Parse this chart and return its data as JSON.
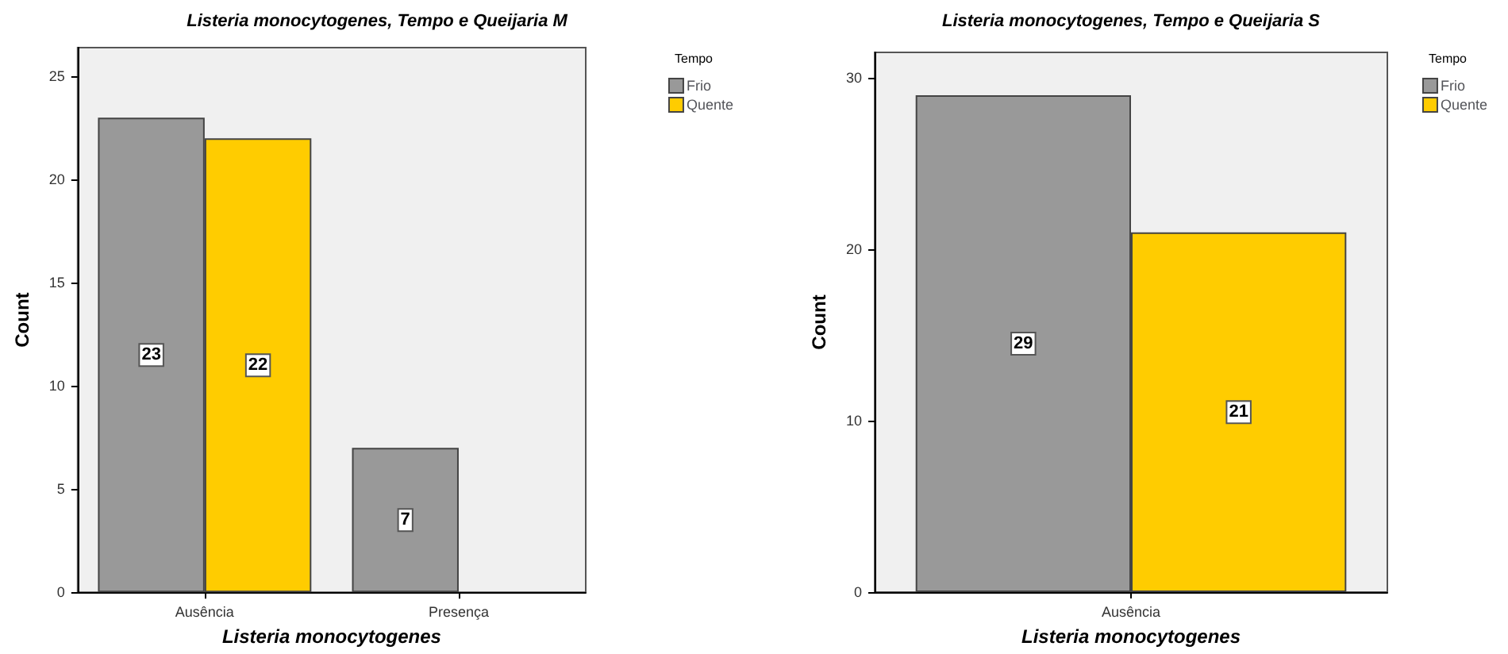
{
  "chart_data": [
    {
      "type": "bar",
      "title": "Listeria monocytogenes, Tempo e Queijaria M",
      "xlabel": "Listeria monocytogenes",
      "ylabel": "Count",
      "legend_title": "Tempo",
      "categories": [
        "Ausência",
        "Presença"
      ],
      "series": [
        {
          "name": "Frio",
          "color": "#999999",
          "values": [
            23,
            7
          ]
        },
        {
          "name": "Quente",
          "color": "#ffcc00",
          "values": [
            22,
            null
          ]
        }
      ],
      "ylim": [
        0,
        26.4
      ],
      "yticks": [
        0,
        5,
        10,
        15,
        20,
        25
      ],
      "grid": false,
      "legend": "top right",
      "data_labels": true
    },
    {
      "type": "bar",
      "title": "Listeria monocytogenes, Tempo e Queijaria S",
      "xlabel": "Listeria monocytogenes",
      "ylabel": "Count",
      "legend_title": "Tempo",
      "categories": [
        "Ausência"
      ],
      "series": [
        {
          "name": "Frio",
          "color": "#999999",
          "values": [
            29
          ]
        },
        {
          "name": "Quente",
          "color": "#ffcc00",
          "values": [
            21
          ]
        }
      ],
      "ylim": [
        0,
        31.5
      ],
      "yticks": [
        0,
        10,
        20,
        30
      ],
      "grid": false,
      "legend": "top right",
      "data_labels": true
    }
  ]
}
